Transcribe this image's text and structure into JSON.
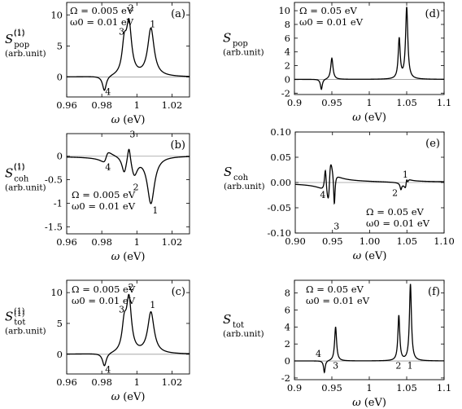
{
  "chart_data": [
    {
      "id": "a",
      "type": "line",
      "panel_label": "(a)",
      "xlabel": "ω",
      "xunit": "(eV)",
      "ylabel": "S",
      "ylabel_sub": "pop",
      "ylabel_sup": "(1)",
      "yunit": "(arb.unit)",
      "xlim": [
        0.96,
        1.03
      ],
      "ylim": [
        -3.2,
        12
      ],
      "xticks": [
        0.96,
        0.98,
        1,
        1.02
      ],
      "xtick_labels": [
        "0.96",
        "0.98",
        "1",
        "1.02"
      ],
      "yticks": [
        0,
        5,
        10
      ],
      "ytick_labels": [
        "0",
        "5",
        "10"
      ],
      "annotations": [
        "Ω = 0.005 eV",
        "ω0 = 0.01 eV"
      ],
      "peak_labels": [
        {
          "text": "1",
          "x": 1.009,
          "y": 8.0
        },
        {
          "text": "2",
          "x": 0.9967,
          "y": 10.6
        },
        {
          "text": "3",
          "x": 0.9913,
          "y": 6.8
        },
        {
          "text": "4",
          "x": 0.9835,
          "y": -2.9
        }
      ],
      "curve": {
        "offset": 0,
        "peaks": [
          [
            1.008,
            0.0022,
            7.7
          ],
          [
            0.9955,
            0.0018,
            8.1
          ],
          [
            0.9928,
            0.0015,
            4.5
          ],
          [
            0.9815,
            0.0013,
            -2.4
          ]
        ],
        "dispersive": []
      },
      "legend": "none",
      "grid": false
    },
    {
      "id": "b",
      "type": "line",
      "panel_label": "(b)",
      "xlabel": "ω",
      "xunit": "(eV)",
      "ylabel": "S",
      "ylabel_sub": "coh",
      "ylabel_sup": "(1)",
      "yunit": "(arb.unit)",
      "xlim": [
        0.96,
        1.03
      ],
      "ylim": [
        -1.65,
        0.48
      ],
      "xticks": [
        0.96,
        0.98,
        1,
        1.02
      ],
      "xtick_labels": [
        "0.96",
        "0.98",
        "1",
        "1.02"
      ],
      "yticks": [
        0,
        -0.5,
        -1,
        -1.5
      ],
      "ytick_labels": [
        "0",
        "-0.5",
        "-1",
        "-1.5"
      ],
      "annotations": [
        "Ω = 0.005 eV",
        "ω0 = 0.01 eV"
      ],
      "peak_labels": [
        {
          "text": "1",
          "x": 1.0105,
          "y": -1.22
        },
        {
          "text": "2",
          "x": 0.9994,
          "y": -0.72
        },
        {
          "text": "3",
          "x": 0.9975,
          "y": 0.4
        },
        {
          "text": "4",
          "x": 0.9835,
          "y": -0.3
        }
      ],
      "curve": {
        "offset": 0,
        "peaks": [
          [
            1.008,
            0.0025,
            -1.0
          ],
          [
            0.9955,
            0.0011,
            0.38
          ],
          [
            0.9985,
            0.0022,
            -0.38
          ],
          [
            0.9928,
            0.0016,
            -0.34
          ]
        ],
        "dispersive": [
          [
            0.9825,
            0.0016,
            0.2
          ]
        ]
      },
      "legend": "none",
      "grid": false
    },
    {
      "id": "c",
      "type": "line",
      "panel_label": "(c)",
      "xlabel": "ω",
      "xunit": "(eV)",
      "ylabel": "S",
      "ylabel_sub": "tot",
      "ylabel_sup": "(1)",
      "yunit": "(arb.unit)",
      "xlim": [
        0.96,
        1.03
      ],
      "ylim": [
        -3.2,
        12
      ],
      "xticks": [
        0.96,
        0.98,
        1,
        1.02
      ],
      "xtick_labels": [
        "0.96",
        "0.98",
        "1",
        "1.02"
      ],
      "yticks": [
        0,
        5,
        10
      ],
      "ytick_labels": [
        "0",
        "5",
        "10"
      ],
      "annotations": [
        "Ω = 0.005 eV",
        "ω0 = 0.01 eV"
      ],
      "peak_labels": [
        {
          "text": "1",
          "x": 1.009,
          "y": 7.5
        },
        {
          "text": "2",
          "x": 0.9967,
          "y": 10.4
        },
        {
          "text": "3",
          "x": 0.9913,
          "y": 6.8
        },
        {
          "text": "4",
          "x": 0.9835,
          "y": -3.0
        }
      ],
      "curve": {
        "offset": 0,
        "peaks": [
          [
            1.008,
            0.0022,
            6.7
          ],
          [
            0.9955,
            0.0017,
            8.5
          ],
          [
            0.9928,
            0.0015,
            4.2
          ],
          [
            0.9815,
            0.0013,
            -2.1
          ]
        ],
        "dispersive": []
      },
      "legend": "none",
      "grid": false
    },
    {
      "id": "d",
      "type": "line",
      "panel_label": "(d)",
      "xlabel": "ω",
      "xunit": "(eV)",
      "ylabel": "S",
      "ylabel_sub": "pop",
      "ylabel_sup": "(1)",
      "yunit": "(arb.unit)",
      "xlim": [
        0.9,
        1.1
      ],
      "ylim": [
        -2.2,
        11.2
      ],
      "xticks": [
        0.9,
        0.95,
        1,
        1.05,
        1.1
      ],
      "xtick_labels": [
        "0.9",
        "0.95",
        "1",
        "1.05",
        "1.1"
      ],
      "yticks": [
        -2,
        0,
        2,
        4,
        6,
        8,
        10
      ],
      "ytick_labels": [
        "-2",
        "0",
        "2",
        "4",
        "6",
        "8",
        "10"
      ],
      "annotations": [
        "Ω = 0.05 eV",
        "ω0 = 0.01 eV"
      ],
      "peak_labels": [],
      "curve": {
        "offset": 0,
        "peaks": [
          [
            1.05,
            0.0018,
            10.4
          ],
          [
            1.04,
            0.0016,
            5.8
          ],
          [
            0.95,
            0.0018,
            3.1
          ],
          [
            0.936,
            0.0015,
            -1.5
          ]
        ],
        "dispersive": []
      },
      "legend": "none",
      "grid": false
    },
    {
      "id": "e",
      "type": "line",
      "panel_label": "(e)",
      "xlabel": "ω",
      "xunit": "(eV)",
      "ylabel": "S",
      "ylabel_sub": "coh",
      "ylabel_sup": "(1)",
      "yunit": "(arb.unit)",
      "xlim": [
        0.9,
        1.1
      ],
      "ylim": [
        -0.1,
        0.1
      ],
      "xticks": [
        0.9,
        0.95,
        1.0,
        1.05,
        1.1
      ],
      "xtick_labels": [
        "0.90",
        "0.95",
        "1.00",
        "1.05",
        "1.10"
      ],
      "yticks": [
        0.1,
        0.05,
        0,
        -0.05,
        -0.1
      ],
      "ytick_labels": [
        "0.10",
        "0.05",
        "0.00",
        "-0.05",
        "-0.10"
      ],
      "annotations": [
        "Ω = 0.05 eV",
        "ω0 = 0.01 eV"
      ],
      "peak_labels": [
        {
          "text": "1",
          "x": 1.048,
          "y": 0.01
        },
        {
          "text": "2",
          "x": 1.034,
          "y": -0.027
        },
        {
          "text": "3",
          "x": 0.9555,
          "y": -0.093
        },
        {
          "text": "4",
          "x": 0.937,
          "y": -0.031
        }
      ],
      "curve": {
        "offset": 0,
        "peaks": [
          [
            0.9405,
            0.0016,
            0.05
          ],
          [
            0.9525,
            0.0012,
            -0.065
          ],
          [
            1.042,
            0.0013,
            -0.012
          ],
          [
            1.051,
            0.0013,
            -0.009
          ]
        ],
        "dispersive": [
          [
            0.946,
            0.0022,
            0.075
          ],
          [
            1.049,
            0.0014,
            0.02
          ]
        ]
      },
      "legend": "none",
      "grid": false
    },
    {
      "id": "f",
      "type": "line",
      "panel_label": "(f)",
      "xlabel": "ω",
      "xunit": "(eV)",
      "ylabel": "S",
      "ylabel_sub": "tot",
      "ylabel_sup": "(1)",
      "yunit": "(arb.unit)",
      "xlim": [
        0.9,
        1.1
      ],
      "ylim": [
        -2.2,
        9.5
      ],
      "xticks": [
        0.9,
        0.95,
        1,
        1.05,
        1.1
      ],
      "xtick_labels": [
        "0.9",
        "0.95",
        "1",
        "1.05",
        "1.1"
      ],
      "yticks": [
        -2,
        0,
        2,
        4,
        6,
        8
      ],
      "ytick_labels": [
        "-2",
        "0",
        "2",
        "4",
        "6",
        "8"
      ],
      "annotations": [
        "Ω = 0.05 eV",
        "ω0 = 0.01 eV"
      ],
      "peak_labels": [
        {
          "text": "1",
          "x": 1.0545,
          "y": -0.9
        },
        {
          "text": "2",
          "x": 1.039,
          "y": -0.9
        },
        {
          "text": "3",
          "x": 0.955,
          "y": -0.9
        },
        {
          "text": "4",
          "x": 0.932,
          "y": 0.5
        }
      ],
      "curve": {
        "offset": 0,
        "peaks": [
          [
            1.055,
            0.0016,
            9.0
          ],
          [
            1.0395,
            0.0015,
            5.3
          ],
          [
            0.955,
            0.0016,
            4.0
          ],
          [
            0.94,
            0.0013,
            -1.4
          ]
        ],
        "dispersive": []
      },
      "legend": "none",
      "grid": false
    }
  ]
}
